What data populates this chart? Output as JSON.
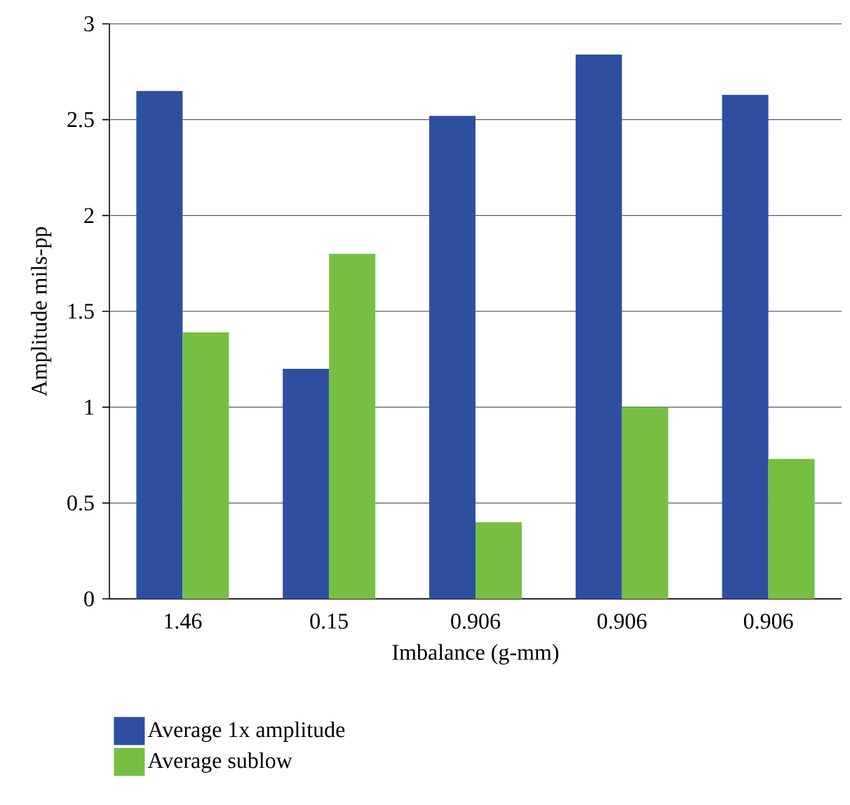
{
  "chart_data": {
    "type": "bar",
    "xlabel": "Imbalance (g-mm)",
    "ylabel": "Amplitude mils-pp",
    "categories": [
      "1.46",
      "0.15",
      "0.906",
      "0.906",
      "0.906"
    ],
    "series": [
      {
        "name": "Average 1x amplitude",
        "color": "#2e4fa0",
        "values": [
          2.65,
          1.2,
          2.52,
          2.84,
          2.63
        ]
      },
      {
        "name": "Average sublow",
        "color": "#76bf43",
        "values": [
          1.39,
          1.8,
          0.4,
          1.0,
          0.73
        ]
      }
    ],
    "ylim": [
      0,
      3
    ],
    "yticks": [
      0,
      0.5,
      1,
      1.5,
      2,
      2.5,
      3
    ],
    "grid": "y",
    "legend": "bottom"
  }
}
